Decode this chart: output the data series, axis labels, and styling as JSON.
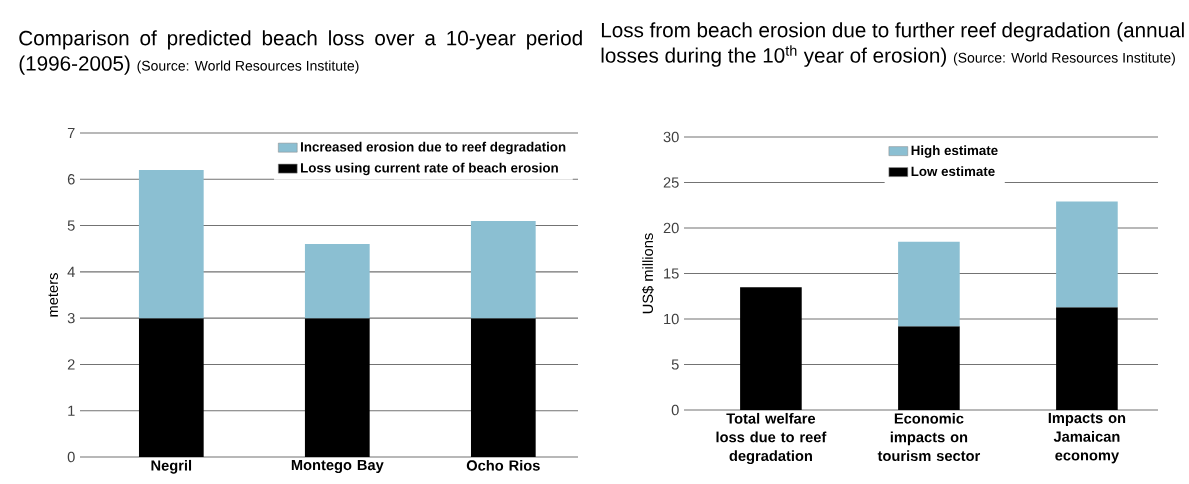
{
  "chart_data": [
    {
      "type": "bar",
      "title": "Comparison of predicted beach loss over a 10-year period (1996-2005)",
      "annotations": [
        "(Source: World Resources Institute)"
      ],
      "ylabel": "meters",
      "categories": [
        "Negril",
        "Montego Bay",
        "Ocho Rios"
      ],
      "stacked": true,
      "series": [
        {
          "name": "Loss using current rate of beach erosion",
          "color": "#000000",
          "values": [
            3.0,
            3.0,
            3.0
          ]
        },
        {
          "name": "Increased erosion due to reef degradation",
          "color": "#8bbfd2",
          "values": [
            3.2,
            1.6,
            2.1
          ]
        }
      ],
      "ylim": [
        0,
        7
      ],
      "yticks": [
        0,
        1,
        2,
        3,
        4,
        5,
        6,
        7
      ],
      "grid": "y",
      "legend": "top right"
    },
    {
      "type": "bar",
      "title": "Loss from beach erosion due to further reef degradation (annual losses during the 10$^{th}$ year of erosion)",
      "annotations": [
        "(Source: World Resources Institute)"
      ],
      "ylabel": "US$ millions",
      "categories": [
        "Total welfare loss due to reef degradation",
        "Economic impacts on tourism sector",
        "Impacts on Jamaican economy"
      ],
      "stacked": true,
      "series": [
        {
          "name": "Low estimate",
          "color": "#000000",
          "values": [
            13.5,
            9.2,
            11.3
          ]
        },
        {
          "name": "High estimate",
          "color": "#8bbfd2",
          "values": [
            null,
            9.3,
            11.6
          ]
        }
      ],
      "ylim": [
        0,
        30
      ],
      "yticks": [
        0,
        5,
        10,
        15,
        20,
        25,
        30
      ],
      "grid": "y",
      "legend": "top"
    }
  ]
}
